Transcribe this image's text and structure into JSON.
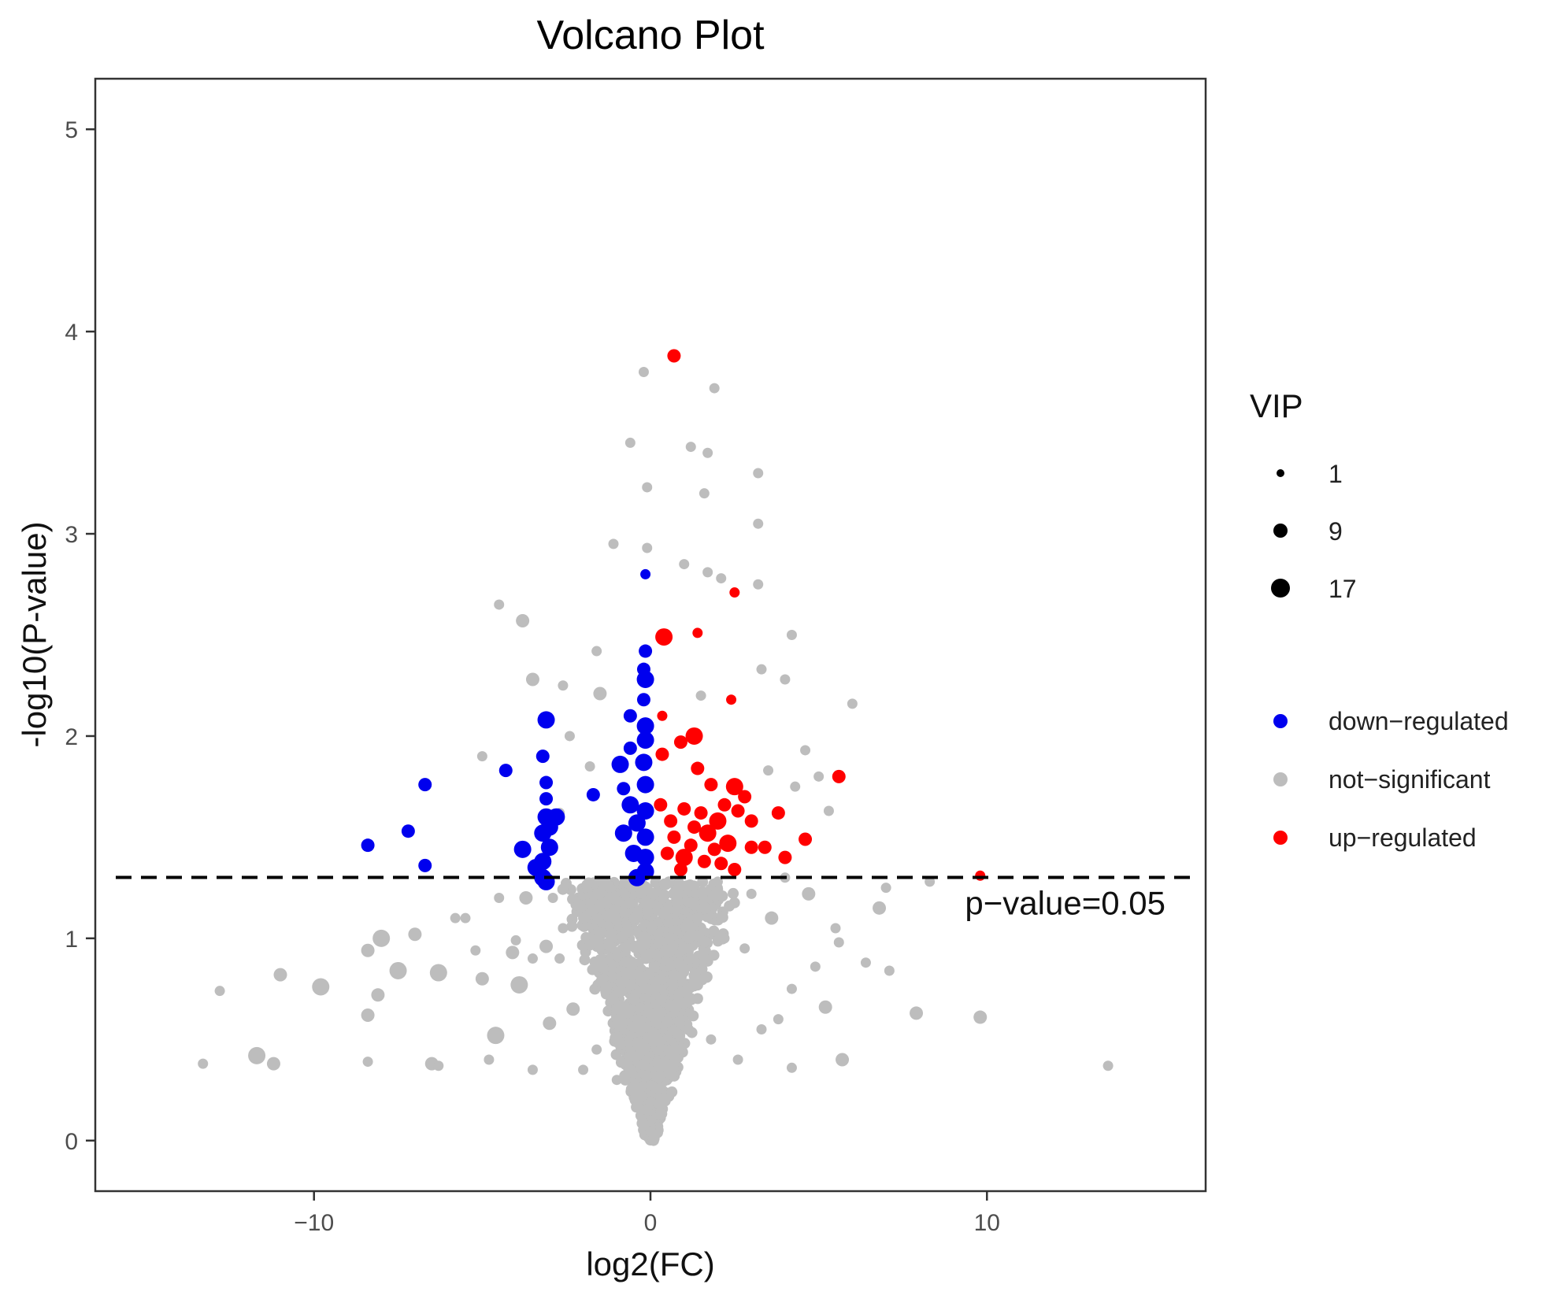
{
  "chart_data": {
    "type": "scatter",
    "title": "Volcano Plot",
    "xlabel": "log2(FC)",
    "ylabel": "-log10(P-value)",
    "xlim": [
      -16.5,
      16.5
    ],
    "ylim": [
      -0.25,
      5.25
    ],
    "xticks": [
      -10,
      0,
      10
    ],
    "xtick_labels": [
      "−10",
      "0",
      "10"
    ],
    "yticks": [
      0,
      1,
      2,
      3,
      4,
      5
    ],
    "ytick_labels": [
      "0",
      "1",
      "2",
      "3",
      "4",
      "5"
    ],
    "grid": false,
    "threshold": {
      "y": 1.30103,
      "style": "dashed",
      "label": "p−value=0.05"
    },
    "size_legend": {
      "title": "VIP",
      "values": [
        1,
        9,
        17
      ],
      "labels": [
        "1",
        "9",
        "17"
      ]
    },
    "color_legend": [
      {
        "name": "down−regulated",
        "color": "#0000ee"
      },
      {
        "name": "not−significant",
        "color": "#bdbdbd"
      },
      {
        "name": "up−regulated",
        "color": "#ff0000"
      }
    ],
    "series": [
      {
        "name": "up-regulated",
        "color": "#ff0000",
        "points": [
          [
            0.7,
            3.88,
            2
          ],
          [
            2.5,
            2.71,
            1
          ],
          [
            1.4,
            2.51,
            1
          ],
          [
            0.4,
            2.49,
            3
          ],
          [
            2.4,
            2.18,
            1
          ],
          [
            0.35,
            2.1,
            1
          ],
          [
            0.35,
            1.91,
            2
          ],
          [
            1.3,
            2.0,
            3
          ],
          [
            0.9,
            1.97,
            2
          ],
          [
            5.6,
            1.8,
            2
          ],
          [
            1.4,
            1.84,
            2
          ],
          [
            1.8,
            1.76,
            2
          ],
          [
            2.5,
            1.75,
            3
          ],
          [
            3.8,
            1.62,
            2
          ],
          [
            0.3,
            1.66,
            2
          ],
          [
            1.0,
            1.64,
            2
          ],
          [
            1.5,
            1.62,
            2
          ],
          [
            2.0,
            1.58,
            3
          ],
          [
            2.6,
            1.63,
            2
          ],
          [
            3.0,
            1.58,
            2
          ],
          [
            4.6,
            1.49,
            2
          ],
          [
            4.0,
            1.4,
            2
          ],
          [
            1.7,
            1.52,
            3
          ],
          [
            0.7,
            1.5,
            2
          ],
          [
            1.2,
            1.46,
            2
          ],
          [
            2.3,
            1.47,
            3
          ],
          [
            3.0,
            1.45,
            2
          ],
          [
            3.4,
            1.45,
            2
          ],
          [
            0.5,
            1.42,
            2
          ],
          [
            1.0,
            1.4,
            3
          ],
          [
            1.6,
            1.38,
            2
          ],
          [
            2.1,
            1.37,
            2
          ],
          [
            2.5,
            1.34,
            2
          ],
          [
            0.9,
            1.34,
            2
          ],
          [
            9.8,
            1.31,
            1
          ],
          [
            1.3,
            1.55,
            2
          ],
          [
            2.8,
            1.7,
            2
          ],
          [
            0.6,
            1.58,
            2
          ],
          [
            1.9,
            1.44,
            2
          ],
          [
            2.2,
            1.66,
            2
          ]
        ]
      },
      {
        "name": "down-regulated",
        "color": "#0000ee",
        "points": [
          [
            -0.15,
            2.8,
            1
          ],
          [
            -0.15,
            2.42,
            2
          ],
          [
            -0.2,
            2.33,
            2
          ],
          [
            -0.15,
            2.28,
            3
          ],
          [
            -0.2,
            2.18,
            2
          ],
          [
            -0.6,
            2.1,
            2
          ],
          [
            -0.15,
            2.05,
            3
          ],
          [
            -0.6,
            1.94,
            2
          ],
          [
            -0.15,
            1.98,
            3
          ],
          [
            -0.9,
            1.86,
            3
          ],
          [
            -0.2,
            1.87,
            3
          ],
          [
            -0.8,
            1.74,
            2
          ],
          [
            -0.15,
            1.76,
            3
          ],
          [
            -1.7,
            1.71,
            2
          ],
          [
            -0.6,
            1.66,
            3
          ],
          [
            -0.15,
            1.63,
            3
          ],
          [
            -0.8,
            1.52,
            3
          ],
          [
            -0.4,
            1.57,
            3
          ],
          [
            -0.15,
            1.5,
            3
          ],
          [
            -0.5,
            1.42,
            3
          ],
          [
            -0.15,
            1.4,
            3
          ],
          [
            -0.4,
            1.3,
            3
          ],
          [
            -0.15,
            1.33,
            3
          ],
          [
            -3.1,
            2.08,
            3
          ],
          [
            -3.2,
            1.9,
            2
          ],
          [
            -3.1,
            1.77,
            2
          ],
          [
            -3.1,
            1.69,
            2
          ],
          [
            -3.1,
            1.6,
            3
          ],
          [
            -3.0,
            1.55,
            3
          ],
          [
            -2.8,
            1.6,
            3
          ],
          [
            -3.2,
            1.52,
            3
          ],
          [
            -3.0,
            1.45,
            3
          ],
          [
            -3.2,
            1.38,
            3
          ],
          [
            -3.4,
            1.35,
            3
          ],
          [
            -3.2,
            1.3,
            3
          ],
          [
            -3.1,
            1.28,
            3
          ],
          [
            -3.8,
            1.44,
            3
          ],
          [
            -4.3,
            1.83,
            2
          ],
          [
            -6.7,
            1.76,
            2
          ],
          [
            -7.2,
            1.53,
            2
          ],
          [
            -6.7,
            1.36,
            2
          ],
          [
            -8.4,
            1.46,
            2
          ]
        ]
      },
      {
        "name": "not-significant",
        "color": "#bdbdbd",
        "points": [
          [
            -0.2,
            3.8,
            1
          ],
          [
            1.9,
            3.72,
            1
          ],
          [
            -0.6,
            3.45,
            1
          ],
          [
            1.2,
            3.43,
            1
          ],
          [
            1.7,
            3.4,
            1
          ],
          [
            3.2,
            3.3,
            1
          ],
          [
            -0.1,
            3.23,
            1
          ],
          [
            1.6,
            3.2,
            1
          ],
          [
            3.2,
            3.05,
            1
          ],
          [
            -1.1,
            2.95,
            1
          ],
          [
            -0.1,
            2.93,
            1
          ],
          [
            1.0,
            2.85,
            1
          ],
          [
            1.7,
            2.81,
            1
          ],
          [
            2.1,
            2.78,
            1
          ],
          [
            3.2,
            2.75,
            1
          ],
          [
            -4.5,
            2.65,
            1
          ],
          [
            -3.8,
            2.57,
            2
          ],
          [
            -1.6,
            2.42,
            1
          ],
          [
            4.2,
            2.5,
            1
          ],
          [
            3.3,
            2.33,
            1
          ],
          [
            -3.5,
            2.28,
            2
          ],
          [
            -2.6,
            2.25,
            1
          ],
          [
            -1.5,
            2.21,
            2
          ],
          [
            6.0,
            2.16,
            1
          ],
          [
            -2.4,
            2.0,
            1
          ],
          [
            4.0,
            2.28,
            1
          ],
          [
            1.5,
            2.2,
            1
          ],
          [
            4.6,
            1.93,
            1
          ],
          [
            5.0,
            1.8,
            1
          ],
          [
            3.5,
            1.83,
            1
          ],
          [
            -5.0,
            1.9,
            1
          ],
          [
            -1.8,
            1.85,
            1
          ],
          [
            4.3,
            1.75,
            1
          ],
          [
            5.3,
            1.63,
            1
          ],
          [
            -2.7,
            1.62,
            1
          ],
          [
            -3.7,
            1.2,
            2
          ],
          [
            -5.5,
            1.1,
            1
          ],
          [
            -4.5,
            1.2,
            1
          ],
          [
            -7.0,
            1.02,
            2
          ],
          [
            -8.0,
            1.0,
            3
          ],
          [
            -8.4,
            0.94,
            2
          ],
          [
            -7.5,
            0.84,
            3
          ],
          [
            -11.0,
            0.82,
            2
          ],
          [
            -9.8,
            0.76,
            3
          ],
          [
            -6.3,
            0.83,
            3
          ],
          [
            -5.0,
            0.8,
            2
          ],
          [
            -5.2,
            0.94,
            1
          ],
          [
            -4.1,
            0.93,
            2
          ],
          [
            -3.9,
            0.77,
            3
          ],
          [
            -8.1,
            0.72,
            2
          ],
          [
            -8.4,
            0.62,
            2
          ],
          [
            -12.8,
            0.74,
            1
          ],
          [
            -4.6,
            0.52,
            3
          ],
          [
            -4.8,
            0.4,
            1
          ],
          [
            -11.7,
            0.42,
            3
          ],
          [
            -11.2,
            0.38,
            2
          ],
          [
            -13.3,
            0.38,
            1
          ],
          [
            -8.4,
            0.39,
            1
          ],
          [
            -6.5,
            0.38,
            2
          ],
          [
            -6.3,
            0.37,
            1
          ],
          [
            -3.1,
            0.96,
            2
          ],
          [
            -2.7,
            0.9,
            1
          ],
          [
            -3.0,
            0.58,
            2
          ],
          [
            -2.3,
            0.65,
            2
          ],
          [
            -2.6,
            1.05,
            1
          ],
          [
            -3.5,
            0.9,
            1
          ],
          [
            -4.0,
            0.99,
            1
          ],
          [
            -5.8,
            1.1,
            1
          ],
          [
            -2.9,
            1.2,
            1
          ],
          [
            -2.0,
            1.1,
            1
          ],
          [
            2.8,
            0.95,
            1
          ],
          [
            3.8,
            0.6,
            1
          ],
          [
            4.2,
            0.75,
            1
          ],
          [
            4.9,
            0.86,
            1
          ],
          [
            5.6,
            0.98,
            1
          ],
          [
            6.4,
            0.88,
            1
          ],
          [
            7.1,
            0.84,
            1
          ],
          [
            7.9,
            0.63,
            2
          ],
          [
            9.8,
            0.61,
            2
          ],
          [
            13.6,
            0.37,
            1
          ],
          [
            6.8,
            1.15,
            2
          ],
          [
            8.3,
            1.28,
            1
          ],
          [
            7.0,
            1.25,
            1
          ],
          [
            5.5,
            1.05,
            1
          ],
          [
            4.7,
            1.22,
            2
          ],
          [
            4.0,
            1.3,
            1
          ],
          [
            3.6,
            1.1,
            2
          ],
          [
            5.2,
            0.66,
            2
          ],
          [
            5.7,
            0.4,
            2
          ],
          [
            4.2,
            0.36,
            1
          ],
          [
            3.3,
            0.55,
            1
          ],
          [
            2.6,
            0.4,
            1
          ],
          [
            1.8,
            0.5,
            1
          ],
          [
            -1.0,
            0.3,
            1
          ],
          [
            -1.6,
            0.45,
            1
          ],
          [
            -2.0,
            0.35,
            1
          ],
          [
            -3.5,
            0.35,
            1
          ],
          [
            -1.4,
            0.8,
            1
          ],
          [
            1.2,
            0.9,
            1
          ],
          [
            2.2,
            1.0,
            1
          ],
          [
            -0.5,
            1.1,
            1
          ],
          [
            0.8,
            1.2,
            1
          ],
          [
            -1.2,
            1.25,
            1
          ],
          [
            2.0,
            1.28,
            1
          ],
          [
            3.0,
            1.22,
            1
          ]
        ]
      }
    ]
  }
}
